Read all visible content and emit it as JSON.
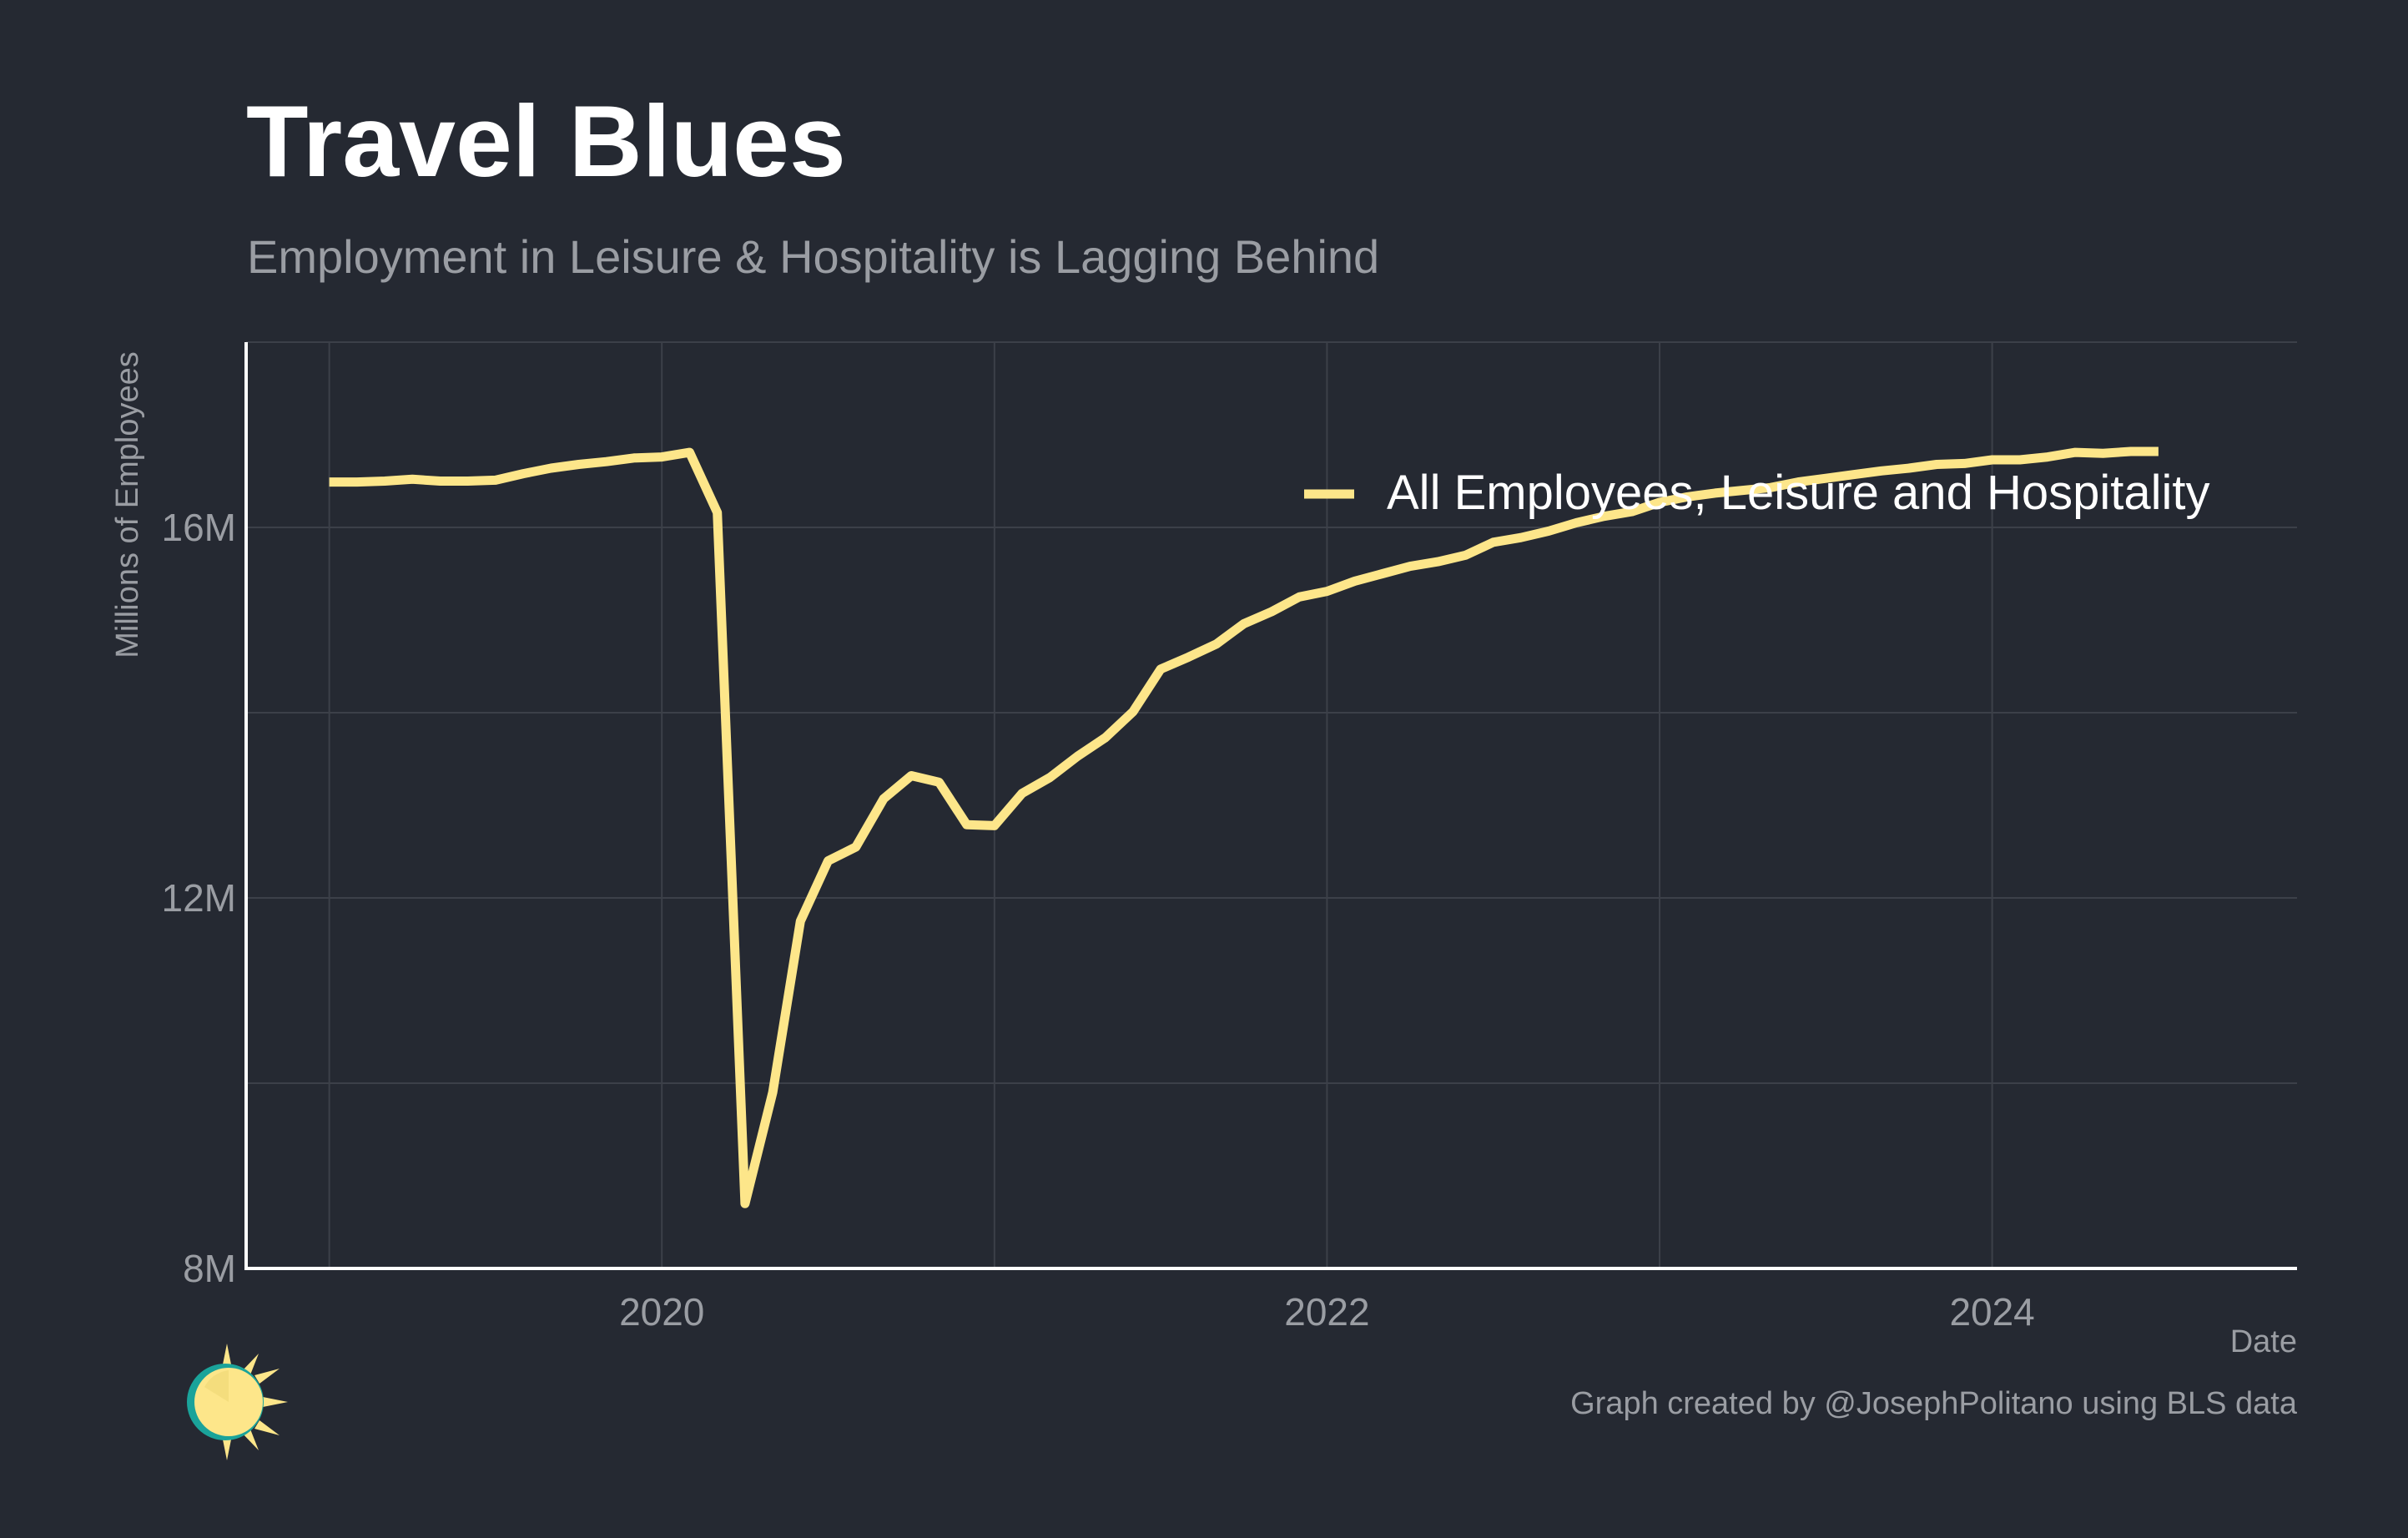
{
  "chart_data": {
    "type": "line",
    "title": "Travel Blues",
    "subtitle": "Employment in Leisure & Hospitality is Lagging Behind",
    "xlabel": "Date",
    "ylabel": "Millions of Employees",
    "x_ticks": [
      "2020",
      "2022",
      "2024"
    ],
    "y_ticks": [
      "8M",
      "12M",
      "16M"
    ],
    "xlim": [
      "2018-10",
      "2024-12"
    ],
    "ylim": [
      8,
      18
    ],
    "grid": true,
    "legend_position": "top-right",
    "credit": "Graph created by @JosephPolitano using BLS data",
    "colors": {
      "background": "#252932",
      "line": "#fde68a",
      "grid": "#3c4049",
      "axis": "#ffffff",
      "muted_text": "#9a9da3"
    },
    "series": [
      {
        "name": "All Employees, Leisure and Hospitality",
        "x": [
          "2019-01",
          "2019-02",
          "2019-03",
          "2019-04",
          "2019-05",
          "2019-06",
          "2019-07",
          "2019-08",
          "2019-09",
          "2019-10",
          "2019-11",
          "2019-12",
          "2020-01",
          "2020-02",
          "2020-03",
          "2020-04",
          "2020-05",
          "2020-06",
          "2020-07",
          "2020-08",
          "2020-09",
          "2020-10",
          "2020-11",
          "2020-12",
          "2021-01",
          "2021-02",
          "2021-03",
          "2021-04",
          "2021-05",
          "2021-06",
          "2021-07",
          "2021-08",
          "2021-09",
          "2021-10",
          "2021-11",
          "2021-12",
          "2022-01",
          "2022-02",
          "2022-03",
          "2022-04",
          "2022-05",
          "2022-06",
          "2022-07",
          "2022-08",
          "2022-09",
          "2022-10",
          "2022-11",
          "2022-12",
          "2023-01",
          "2023-02",
          "2023-03",
          "2023-04",
          "2023-05",
          "2023-06",
          "2023-07",
          "2023-08",
          "2023-09",
          "2023-10",
          "2023-11",
          "2023-12",
          "2024-01",
          "2024-02",
          "2024-03",
          "2024-04",
          "2024-05",
          "2024-06",
          "2024-07"
        ],
        "y": [
          16.49,
          16.49,
          16.5,
          16.52,
          16.5,
          16.5,
          16.51,
          16.58,
          16.64,
          16.68,
          16.71,
          16.75,
          16.76,
          16.81,
          16.16,
          8.7,
          9.9,
          11.75,
          12.4,
          12.55,
          13.07,
          13.32,
          13.25,
          12.79,
          12.78,
          13.13,
          13.3,
          13.53,
          13.73,
          14.01,
          14.47,
          14.6,
          14.74,
          14.96,
          15.09,
          15.25,
          15.31,
          15.42,
          15.5,
          15.58,
          15.63,
          15.7,
          15.84,
          15.89,
          15.96,
          16.05,
          16.12,
          16.17,
          16.27,
          16.33,
          16.37,
          16.4,
          16.43,
          16.49,
          16.53,
          16.57,
          16.61,
          16.64,
          16.68,
          16.69,
          16.73,
          16.73,
          16.76,
          16.81,
          16.8,
          16.82,
          16.82
        ]
      }
    ]
  }
}
